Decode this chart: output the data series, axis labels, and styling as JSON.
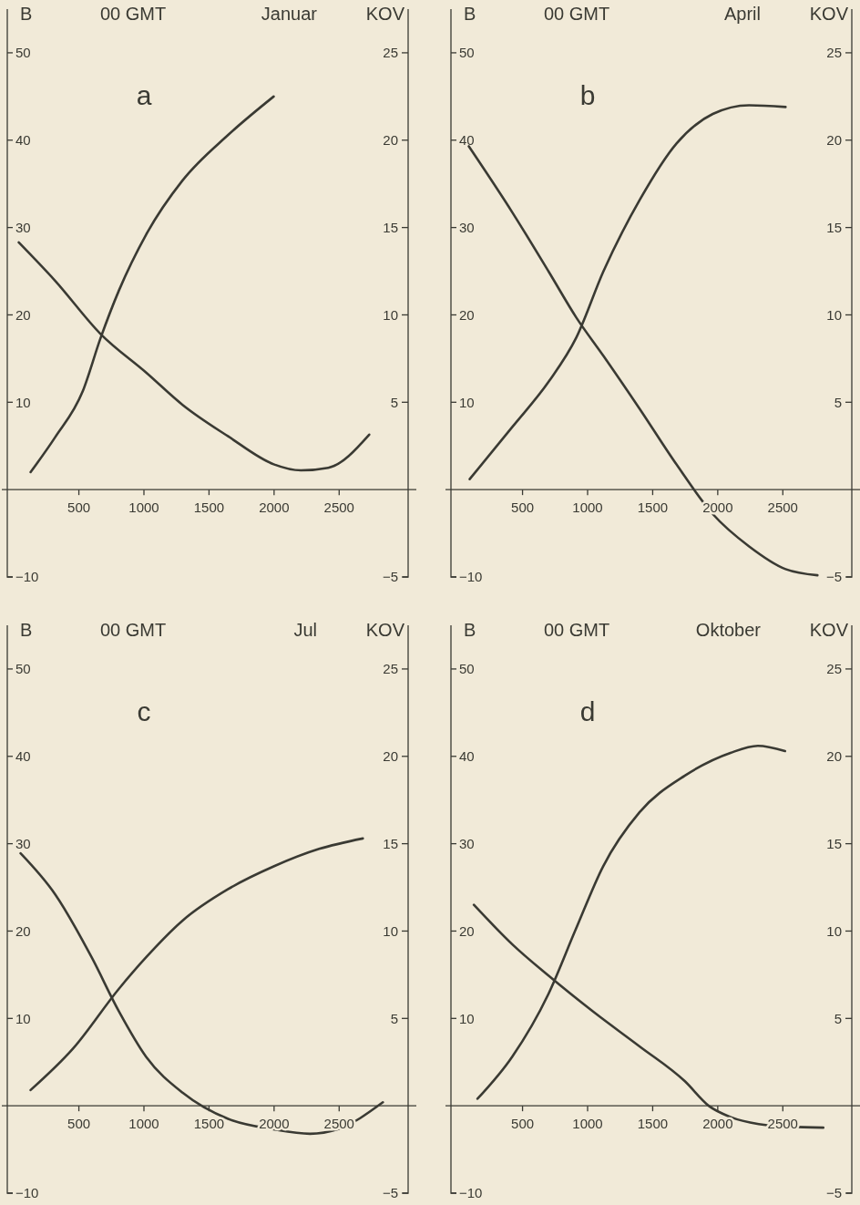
{
  "chart_data": [
    {
      "type": "line",
      "title": "00 GMT",
      "subtitle": "Januar",
      "ylabel": "B",
      "y2label": "KOV",
      "annotations": [
        "a"
      ],
      "xlim": [
        -50,
        3030
      ],
      "xticks": [
        500,
        1000,
        1500,
        2000,
        2500
      ],
      "ylim": [
        -10,
        55
      ],
      "yticks": [
        50,
        40,
        30,
        20,
        10,
        -10
      ],
      "y2lim": [
        -5,
        27.5
      ],
      "y2ticks": [
        25,
        20,
        15,
        10,
        5,
        -5
      ],
      "series": [
        {
          "color": "#3a3a33",
          "x": [
            38,
            318,
            668,
            1017,
            1297,
            1647,
            1997,
            2206,
            2416,
            2731
          ],
          "values": [
            28.3,
            23.9,
            17.8,
            13.4,
            9.7,
            6.1,
            2.9,
            2.2,
            2.5,
            6.3
          ]
        },
        {
          "color": "#3a3a33",
          "axis": "y2",
          "x": [
            129,
            318,
            528,
            668,
            808,
            1017,
            1297,
            1647,
            1997
          ],
          "values": [
            1.0,
            3.0,
            5.6,
            8.7,
            11.4,
            14.6,
            17.7,
            20.3,
            22.5
          ]
        }
      ]
    },
    {
      "type": "line",
      "title": "00 GMT",
      "subtitle": "April",
      "ylabel": "B",
      "y2label": "KOV",
      "annotations": [
        "b"
      ],
      "xlim": [
        -50,
        3030
      ],
      "xticks": [
        500,
        1000,
        1500,
        2000,
        2500
      ],
      "ylim": [
        -10,
        55
      ],
      "yticks": [
        50,
        40,
        30,
        20,
        10,
        -10
      ],
      "y2lim": [
        -5,
        27.5
      ],
      "y2ticks": [
        25,
        20,
        15,
        10,
        5,
        -5
      ],
      "series": [
        {
          "color": "#3a3a33",
          "x": [
            87,
            423,
            703,
            913,
            1122,
            1402,
            1682,
            1962,
            2241,
            2521,
            2766
          ],
          "values": [
            39.3,
            31.7,
            24.9,
            19.7,
            15.3,
            9.2,
            2.9,
            -2.8,
            -6.5,
            -9.1,
            -9.8
          ]
        },
        {
          "color": "#3a3a33",
          "axis": "y2",
          "x": [
            94,
            423,
            703,
            913,
            1122,
            1402,
            1682,
            1962,
            2241,
            2521
          ],
          "values": [
            0.6,
            3.6,
            6.2,
            8.7,
            12.5,
            16.6,
            19.8,
            21.5,
            22.0,
            21.9
          ]
        }
      ]
    },
    {
      "type": "line",
      "title": "00 GMT",
      "subtitle": "Jul",
      "ylabel": "B",
      "y2label": "KOV",
      "annotations": [
        "c"
      ],
      "xlim": [
        -50,
        3030
      ],
      "xticks": [
        500,
        1000,
        1500,
        2000,
        2500
      ],
      "ylim": [
        -10,
        55
      ],
      "yticks": [
        50,
        40,
        30,
        20,
        10,
        -10
      ],
      "y2lim": [
        -5,
        27.5
      ],
      "y2ticks": [
        25,
        20,
        15,
        10,
        5,
        -5
      ],
      "series": [
        {
          "color": "#3a3a33",
          "x": [
            52,
            318,
            598,
            808,
            1017,
            1297,
            1647,
            1997,
            2276,
            2486,
            2836
          ],
          "values": [
            28.9,
            24.2,
            17.0,
            10.8,
            5.6,
            1.5,
            -1.5,
            -2.7,
            -3.2,
            -2.7,
            0.4
          ]
        },
        {
          "color": "#3a3a33",
          "axis": "y2",
          "x": [
            129,
            458,
            808,
            1017,
            1297,
            1647,
            1997,
            2346,
            2682
          ],
          "values": [
            0.9,
            3.3,
            6.7,
            8.5,
            10.6,
            12.4,
            13.7,
            14.7,
            15.3
          ]
        }
      ]
    },
    {
      "type": "line",
      "title": "00 GMT",
      "subtitle": "Oktober",
      "ylabel": "B",
      "y2label": "KOV",
      "annotations": [
        "d"
      ],
      "xlim": [
        -50,
        3030
      ],
      "xticks": [
        500,
        1000,
        1500,
        2000,
        2500
      ],
      "ylim": [
        -10,
        55
      ],
      "yticks": [
        50,
        40,
        30,
        20,
        10,
        -10
      ],
      "y2lim": [
        -5,
        27.5
      ],
      "y2ticks": [
        25,
        20,
        15,
        10,
        5,
        -5
      ],
      "series": [
        {
          "color": "#3a3a33",
          "x": [
            126,
            420,
            699,
            1049,
            1399,
            1748,
            1930,
            2100,
            2315,
            2550,
            2811
          ],
          "values": [
            23.0,
            18.5,
            14.9,
            10.7,
            6.8,
            2.8,
            0,
            -1.3,
            -2.1,
            -2.4,
            -2.5
          ]
        },
        {
          "color": "#3a3a33",
          "axis": "y2",
          "x": [
            154,
            420,
            699,
            909,
            1119,
            1399,
            1748,
            2098,
            2308,
            2517
          ],
          "values": [
            0.4,
            2.8,
            6.4,
            10.1,
            13.7,
            16.8,
            18.9,
            20.2,
            20.6,
            20.3
          ]
        }
      ]
    }
  ]
}
